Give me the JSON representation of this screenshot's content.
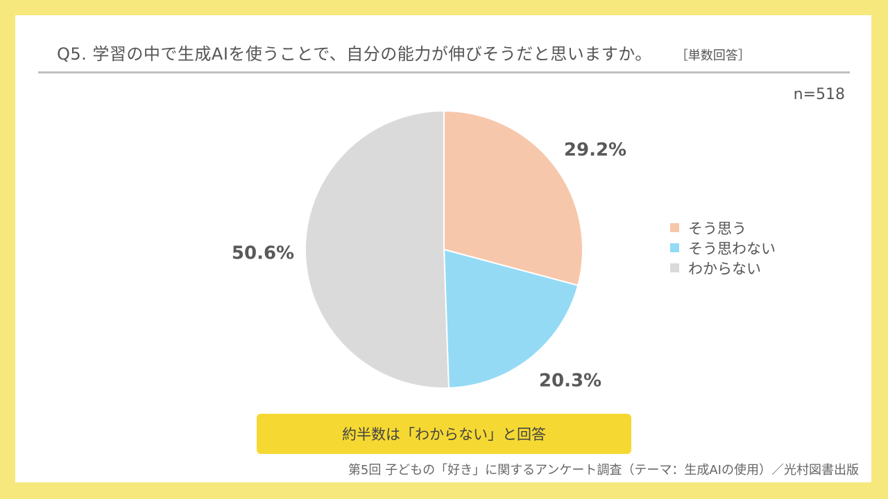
{
  "header": {
    "title": "Q5. 学習の中で生成AIを使うことで、自分の能力が伸びそうだと思いますか。",
    "answer_type": "［単数回答］",
    "sample_size": "n=518"
  },
  "colors": {
    "background": "#f7e87e",
    "callout": "#f5d932"
  },
  "chart_data": {
    "type": "pie",
    "title": "Q5. 学習の中で生成AIを使うことで、自分の能力が伸びそうだと思いますか。",
    "legend_position": "right",
    "slices": [
      {
        "label": "そう思う",
        "value": 29.2,
        "display": "29.2%",
        "color": "#f7c7ab"
      },
      {
        "label": "そう思わない",
        "value": 20.3,
        "display": "20.3%",
        "color": "#94daf5"
      },
      {
        "label": "わからない",
        "value": 50.6,
        "display": "50.6%",
        "color": "#dadada"
      }
    ]
  },
  "callout": {
    "text": "約半数は「わからない」と回答"
  },
  "footer": {
    "source": "第5回 子どもの「好き」に関するアンケート調査（テーマ：生成AIの使用）／光村図書出版"
  }
}
